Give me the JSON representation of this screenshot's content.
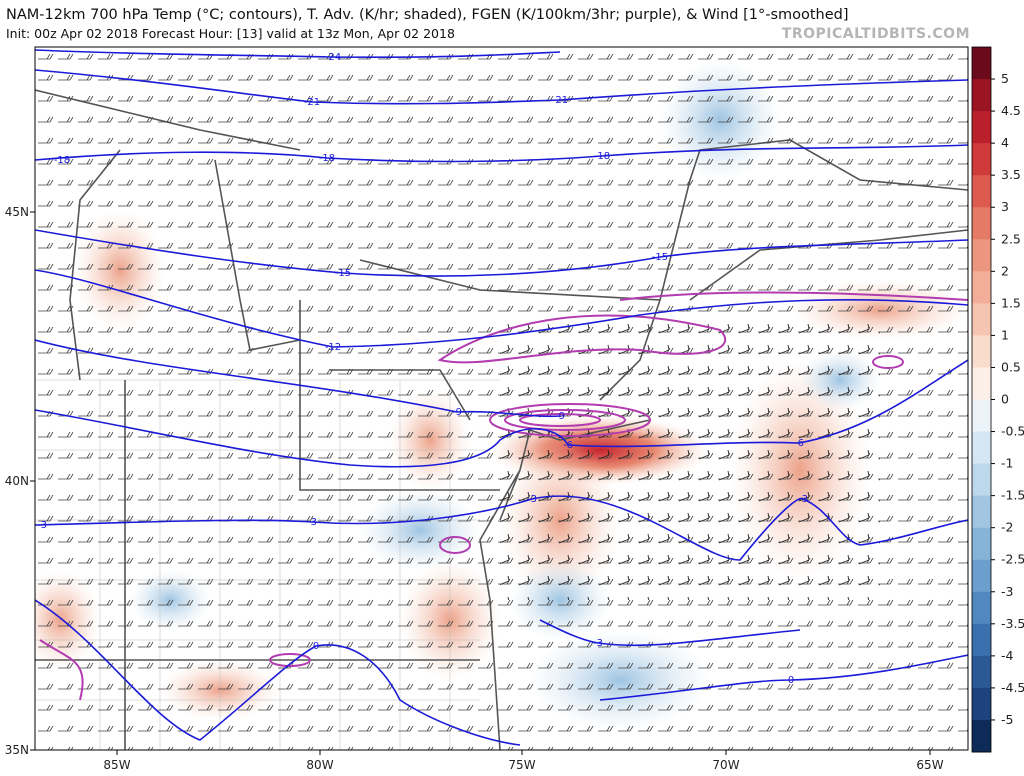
{
  "header": {
    "title": "NAM-12km 700 hPa Temp (°C; contours), T. Adv. (K/hr; shaded), FGEN (K/100km/3hr; purple), & Wind [1°-smoothed]",
    "subtitle": "Init: 00z Apr 02 2018   Forecast Hour: [13]   valid at 13z Mon, Apr 02 2018",
    "branding": "TROPICALTIDBITS.COM"
  },
  "map": {
    "longitude_labels": [
      "85W",
      "80W",
      "75W",
      "70W",
      "65W"
    ],
    "latitude_labels": [
      "45N",
      "40N",
      "35N"
    ],
    "contour_labels": [
      "-24",
      "-21",
      "-21",
      "-18",
      "-18",
      "-18",
      "-15",
      "-15",
      "-12",
      "-9",
      "-9",
      "-6",
      "-6",
      "-3",
      "-3",
      "-3",
      "-3",
      "-3",
      "0",
      "0"
    ]
  },
  "colorbar": {
    "labels": [
      5,
      4.5,
      4,
      3.5,
      3,
      2.5,
      2,
      1.5,
      1,
      0.5,
      0,
      -0.5,
      -1,
      -1.5,
      -2,
      -2.5,
      -3,
      -3.5,
      -4,
      -4.5,
      -5
    ]
  }
}
